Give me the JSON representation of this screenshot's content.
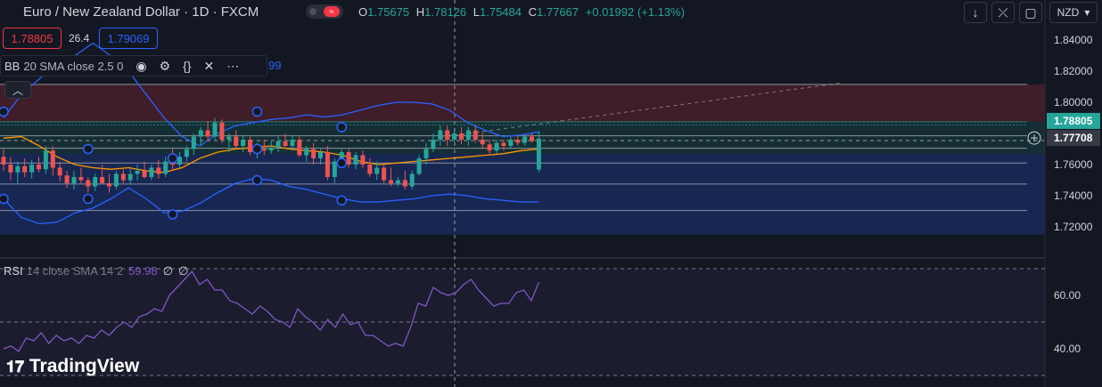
{
  "header": {
    "symbol_title": "Euro / New Zealand Dollar · 1D · FXCM",
    "ohlc": {
      "o_label": "O",
      "o": "1.75675",
      "h_label": "H",
      "h": "1.78126",
      "l_label": "L",
      "l": "1.75484",
      "c_label": "C",
      "c": "1.77667",
      "change": "+0.01992 (+1.13%)"
    },
    "sell_price": "1.78805",
    "spread": "26.4",
    "buy_price": "1.79069"
  },
  "indicator": {
    "name": "BB",
    "params": "20 SMA close 2.5 0",
    "partial_value": "99"
  },
  "toolbar": {
    "currency": "NZD"
  },
  "rsi": {
    "name": "RSI",
    "params": "14 close SMA 14 2",
    "value": "59.98",
    "extra1": "∅",
    "extra2": "∅"
  },
  "logo_text": "TradingView",
  "colors": {
    "up": "#26a69a",
    "down": "#ef5350",
    "bb_band": "#2962ff",
    "bb_basis": "#ff9800",
    "rsi": "#7e57c2",
    "background": "#131722"
  },
  "chart_data": [
    {
      "type": "candlestick",
      "title": "Euro / New Zealand Dollar · 1D · FXCM",
      "ylim": [
        1.7,
        1.86
      ],
      "y_ticks": [
        "1.84000",
        "1.82000",
        "1.80000",
        "1.78805",
        "1.77708",
        "1.76000",
        "1.74000",
        "1.72000"
      ],
      "price_labels": [
        {
          "label": "1.78805",
          "color": "#26a69a"
        },
        {
          "label": "1.77708",
          "color": "#363a45"
        }
      ],
      "zones": [
        {
          "name": "red",
          "from": 1.7875,
          "to": 1.8115,
          "color": "#f23645"
        },
        {
          "name": "green",
          "from": 1.767,
          "to": 1.7875,
          "color": "#26a69a"
        },
        {
          "name": "blue",
          "from": 1.715,
          "to": 1.767,
          "color": "#2962ff"
        }
      ],
      "levels": [
        1.8115,
        1.7875,
        1.7855,
        1.7785,
        1.7705,
        1.761,
        1.7475,
        1.7305
      ],
      "extension_line": {
        "from": [
          62,
          1.7775
        ],
        "to": [
          119,
          1.8125
        ]
      },
      "candles": [
        {
          "o": 1.765,
          "h": 1.77,
          "l": 1.756,
          "c": 1.76
        },
        {
          "o": 1.76,
          "h": 1.765,
          "l": 1.75,
          "c": 1.755
        },
        {
          "o": 1.755,
          "h": 1.762,
          "l": 1.748,
          "c": 1.759
        },
        {
          "o": 1.759,
          "h": 1.764,
          "l": 1.752,
          "c": 1.755
        },
        {
          "o": 1.755,
          "h": 1.763,
          "l": 1.751,
          "c": 1.76
        },
        {
          "o": 1.76,
          "h": 1.765,
          "l": 1.755,
          "c": 1.757
        },
        {
          "o": 1.757,
          "h": 1.772,
          "l": 1.754,
          "c": 1.769
        },
        {
          "o": 1.769,
          "h": 1.772,
          "l": 1.753,
          "c": 1.758
        },
        {
          "o": 1.758,
          "h": 1.762,
          "l": 1.749,
          "c": 1.753
        },
        {
          "o": 1.753,
          "h": 1.756,
          "l": 1.745,
          "c": 1.748
        },
        {
          "o": 1.748,
          "h": 1.756,
          "l": 1.744,
          "c": 1.752
        },
        {
          "o": 1.752,
          "h": 1.758,
          "l": 1.748,
          "c": 1.75
        },
        {
          "o": 1.75,
          "h": 1.752,
          "l": 1.742,
          "c": 1.746
        },
        {
          "o": 1.746,
          "h": 1.754,
          "l": 1.743,
          "c": 1.752
        },
        {
          "o": 1.752,
          "h": 1.76,
          "l": 1.748,
          "c": 1.748
        },
        {
          "o": 1.748,
          "h": 1.754,
          "l": 1.742,
          "c": 1.746
        },
        {
          "o": 1.746,
          "h": 1.756,
          "l": 1.744,
          "c": 1.754
        },
        {
          "o": 1.754,
          "h": 1.758,
          "l": 1.748,
          "c": 1.75
        },
        {
          "o": 1.75,
          "h": 1.757,
          "l": 1.747,
          "c": 1.754
        },
        {
          "o": 1.754,
          "h": 1.76,
          "l": 1.75,
          "c": 1.756
        },
        {
          "o": 1.756,
          "h": 1.762,
          "l": 1.751,
          "c": 1.752
        },
        {
          "o": 1.752,
          "h": 1.76,
          "l": 1.75,
          "c": 1.758
        },
        {
          "o": 1.758,
          "h": 1.763,
          "l": 1.751,
          "c": 1.754
        },
        {
          "o": 1.754,
          "h": 1.765,
          "l": 1.752,
          "c": 1.762
        },
        {
          "o": 1.762,
          "h": 1.77,
          "l": 1.756,
          "c": 1.76
        },
        {
          "o": 1.76,
          "h": 1.768,
          "l": 1.758,
          "c": 1.765
        },
        {
          "o": 1.765,
          "h": 1.772,
          "l": 1.762,
          "c": 1.77
        },
        {
          "o": 1.77,
          "h": 1.78,
          "l": 1.766,
          "c": 1.778
        },
        {
          "o": 1.778,
          "h": 1.784,
          "l": 1.772,
          "c": 1.782
        },
        {
          "o": 1.782,
          "h": 1.788,
          "l": 1.775,
          "c": 1.778
        },
        {
          "o": 1.778,
          "h": 1.79,
          "l": 1.776,
          "c": 1.787
        },
        {
          "o": 1.787,
          "h": 1.789,
          "l": 1.774,
          "c": 1.776
        },
        {
          "o": 1.776,
          "h": 1.78,
          "l": 1.768,
          "c": 1.778
        },
        {
          "o": 1.778,
          "h": 1.782,
          "l": 1.77,
          "c": 1.772
        },
        {
          "o": 1.772,
          "h": 1.779,
          "l": 1.768,
          "c": 1.776
        },
        {
          "o": 1.776,
          "h": 1.778,
          "l": 1.766,
          "c": 1.768
        },
        {
          "o": 1.768,
          "h": 1.774,
          "l": 1.764,
          "c": 1.77
        },
        {
          "o": 1.77,
          "h": 1.776,
          "l": 1.766,
          "c": 1.769
        },
        {
          "o": 1.769,
          "h": 1.775,
          "l": 1.767,
          "c": 1.771
        },
        {
          "o": 1.771,
          "h": 1.778,
          "l": 1.768,
          "c": 1.775
        },
        {
          "o": 1.775,
          "h": 1.78,
          "l": 1.77,
          "c": 1.772
        },
        {
          "o": 1.772,
          "h": 1.779,
          "l": 1.769,
          "c": 1.776
        },
        {
          "o": 1.776,
          "h": 1.778,
          "l": 1.765,
          "c": 1.766
        },
        {
          "o": 1.766,
          "h": 1.772,
          "l": 1.762,
          "c": 1.77
        },
        {
          "o": 1.77,
          "h": 1.774,
          "l": 1.76,
          "c": 1.764
        },
        {
          "o": 1.764,
          "h": 1.77,
          "l": 1.76,
          "c": 1.768
        },
        {
          "o": 1.768,
          "h": 1.772,
          "l": 1.75,
          "c": 1.752
        },
        {
          "o": 1.752,
          "h": 1.764,
          "l": 1.748,
          "c": 1.762
        },
        {
          "o": 1.762,
          "h": 1.77,
          "l": 1.76,
          "c": 1.768
        },
        {
          "o": 1.768,
          "h": 1.77,
          "l": 1.758,
          "c": 1.76
        },
        {
          "o": 1.76,
          "h": 1.768,
          "l": 1.757,
          "c": 1.766
        },
        {
          "o": 1.766,
          "h": 1.769,
          "l": 1.758,
          "c": 1.76
        },
        {
          "o": 1.76,
          "h": 1.764,
          "l": 1.752,
          "c": 1.754
        },
        {
          "o": 1.754,
          "h": 1.762,
          "l": 1.75,
          "c": 1.758
        },
        {
          "o": 1.758,
          "h": 1.76,
          "l": 1.748,
          "c": 1.75
        },
        {
          "o": 1.75,
          "h": 1.758,
          "l": 1.746,
          "c": 1.748
        },
        {
          "o": 1.748,
          "h": 1.752,
          "l": 1.746,
          "c": 1.75
        },
        {
          "o": 1.75,
          "h": 1.756,
          "l": 1.744,
          "c": 1.746
        },
        {
          "o": 1.746,
          "h": 1.756,
          "l": 1.744,
          "c": 1.754
        },
        {
          "o": 1.754,
          "h": 1.766,
          "l": 1.753,
          "c": 1.764
        },
        {
          "o": 1.764,
          "h": 1.774,
          "l": 1.76,
          "c": 1.77
        },
        {
          "o": 1.77,
          "h": 1.78,
          "l": 1.768,
          "c": 1.776
        },
        {
          "o": 1.776,
          "h": 1.785,
          "l": 1.772,
          "c": 1.782
        },
        {
          "o": 1.782,
          "h": 1.785,
          "l": 1.772,
          "c": 1.776
        },
        {
          "o": 1.776,
          "h": 1.783,
          "l": 1.774,
          "c": 1.78
        },
        {
          "o": 1.78,
          "h": 1.784,
          "l": 1.773,
          "c": 1.776
        },
        {
          "o": 1.776,
          "h": 1.784,
          "l": 1.772,
          "c": 1.782
        },
        {
          "o": 1.782,
          "h": 1.785,
          "l": 1.774,
          "c": 1.776
        },
        {
          "o": 1.776,
          "h": 1.781,
          "l": 1.77,
          "c": 1.773
        },
        {
          "o": 1.773,
          "h": 1.776,
          "l": 1.766,
          "c": 1.769
        },
        {
          "o": 1.769,
          "h": 1.776,
          "l": 1.767,
          "c": 1.774
        },
        {
          "o": 1.774,
          "h": 1.776,
          "l": 1.769,
          "c": 1.772
        },
        {
          "o": 1.772,
          "h": 1.778,
          "l": 1.77,
          "c": 1.776
        },
        {
          "o": 1.776,
          "h": 1.779,
          "l": 1.772,
          "c": 1.774
        },
        {
          "o": 1.774,
          "h": 1.779,
          "l": 1.772,
          "c": 1.778
        },
        {
          "o": 1.778,
          "h": 1.78,
          "l": 1.774,
          "c": 1.775
        },
        {
          "o": 1.7568,
          "h": 1.7813,
          "l": 1.7548,
          "c": 1.7767
        }
      ],
      "bb_upper": [
        1.79,
        1.805,
        1.815,
        1.825,
        1.83,
        1.838,
        1.83,
        1.82,
        1.805,
        1.79,
        1.778,
        1.772,
        1.78,
        1.785,
        1.787,
        1.789,
        1.79,
        1.792,
        1.7905,
        1.792,
        1.795,
        1.798,
        1.8,
        1.8,
        1.799,
        1.795,
        1.787,
        1.782,
        1.778,
        1.779,
        1.781
      ],
      "bb_basis": [
        1.777,
        1.778,
        1.772,
        1.765,
        1.76,
        1.758,
        1.757,
        1.758,
        1.756,
        1.755,
        1.758,
        1.764,
        1.768,
        1.77,
        1.771,
        1.772,
        1.77,
        1.769,
        1.768,
        1.766,
        1.762,
        1.76,
        1.761,
        1.762,
        1.763,
        1.764,
        1.765,
        1.766,
        1.767,
        1.769,
        1.77
      ],
      "bb_lower": [
        1.738,
        1.726,
        1.722,
        1.723,
        1.729,
        1.732,
        1.738,
        1.745,
        1.738,
        1.729,
        1.73,
        1.735,
        1.742,
        1.748,
        1.751,
        1.75,
        1.746,
        1.744,
        1.741,
        1.738,
        1.736,
        1.736,
        1.737,
        1.738,
        1.74,
        1.741,
        1.74,
        1.738,
        1.737,
        1.736,
        1.736
      ],
      "band_markers": [
        {
          "i": 0,
          "v": 1.794
        },
        {
          "i": 0,
          "v": 1.738
        },
        {
          "i": 12,
          "v": 1.77
        },
        {
          "i": 12,
          "v": 1.738
        },
        {
          "i": 24,
          "v": 1.764
        },
        {
          "i": 24,
          "v": 1.728
        },
        {
          "i": 36,
          "v": 1.794
        },
        {
          "i": 36,
          "v": 1.77
        },
        {
          "i": 36,
          "v": 1.75
        },
        {
          "i": 48,
          "v": 1.784
        },
        {
          "i": 48,
          "v": 1.761
        },
        {
          "i": 48,
          "v": 1.737
        }
      ]
    },
    {
      "type": "line",
      "title": "RSI 14 close SMA 14 2",
      "ylim": [
        35,
        72
      ],
      "y_ticks": [
        "60.00",
        "40.00"
      ],
      "levels": [
        70,
        50,
        30
      ],
      "series": [
        {
          "name": "RSI",
          "values": [
            40,
            41,
            39,
            44,
            43,
            46,
            42,
            45,
            43,
            44,
            42,
            45,
            44,
            47,
            45,
            48,
            50,
            48,
            52,
            53,
            55,
            54,
            60,
            63,
            66,
            69,
            64,
            66,
            62,
            62,
            58,
            57,
            55,
            53,
            56,
            54,
            51,
            50,
            48,
            55,
            52,
            50,
            47,
            51,
            48,
            53,
            49,
            50,
            45,
            45,
            43,
            41,
            42,
            41,
            48,
            57,
            56,
            63,
            61,
            60,
            61,
            64,
            66,
            62,
            59,
            56,
            57,
            57,
            61,
            62,
            58,
            65
          ]
        }
      ]
    }
  ]
}
